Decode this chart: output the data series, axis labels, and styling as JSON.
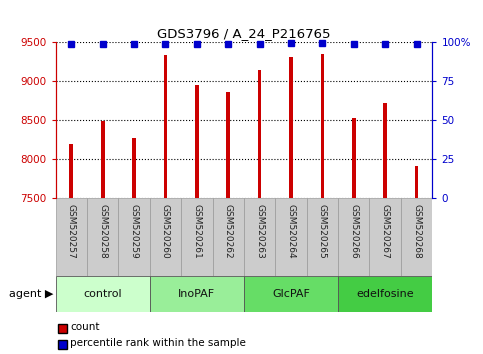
{
  "title": "GDS3796 / A_24_P216765",
  "samples": [
    "GSM520257",
    "GSM520258",
    "GSM520259",
    "GSM520260",
    "GSM520261",
    "GSM520262",
    "GSM520263",
    "GSM520264",
    "GSM520265",
    "GSM520266",
    "GSM520267",
    "GSM520268"
  ],
  "counts": [
    8200,
    8490,
    8270,
    9340,
    8960,
    8870,
    9150,
    9310,
    9350,
    8530,
    8720,
    7920
  ],
  "percentile_ranks": [
    99,
    99,
    99,
    99,
    99,
    99,
    99,
    99.5,
    99.5,
    99,
    99,
    99
  ],
  "bar_color": "#cc0000",
  "dot_color": "#0000cc",
  "ylim_left": [
    7500,
    9500
  ],
  "ylim_right": [
    0,
    100
  ],
  "yticks_left": [
    7500,
    8000,
    8500,
    9000,
    9500
  ],
  "yticks_right": [
    0,
    25,
    50,
    75,
    100
  ],
  "groups": [
    {
      "label": "control",
      "start": 0,
      "end": 3,
      "color": "#ccffcc"
    },
    {
      "label": "InoPAF",
      "start": 3,
      "end": 6,
      "color": "#99ee99"
    },
    {
      "label": "GlcPAF",
      "start": 6,
      "end": 9,
      "color": "#66dd66"
    },
    {
      "label": "edelfosine",
      "start": 9,
      "end": 12,
      "color": "#44cc44"
    }
  ],
  "agent_label": "agent",
  "left_axis_color": "#cc0000",
  "right_axis_color": "#0000cc",
  "sample_box_color": "#cccccc",
  "bar_width": 0.12
}
